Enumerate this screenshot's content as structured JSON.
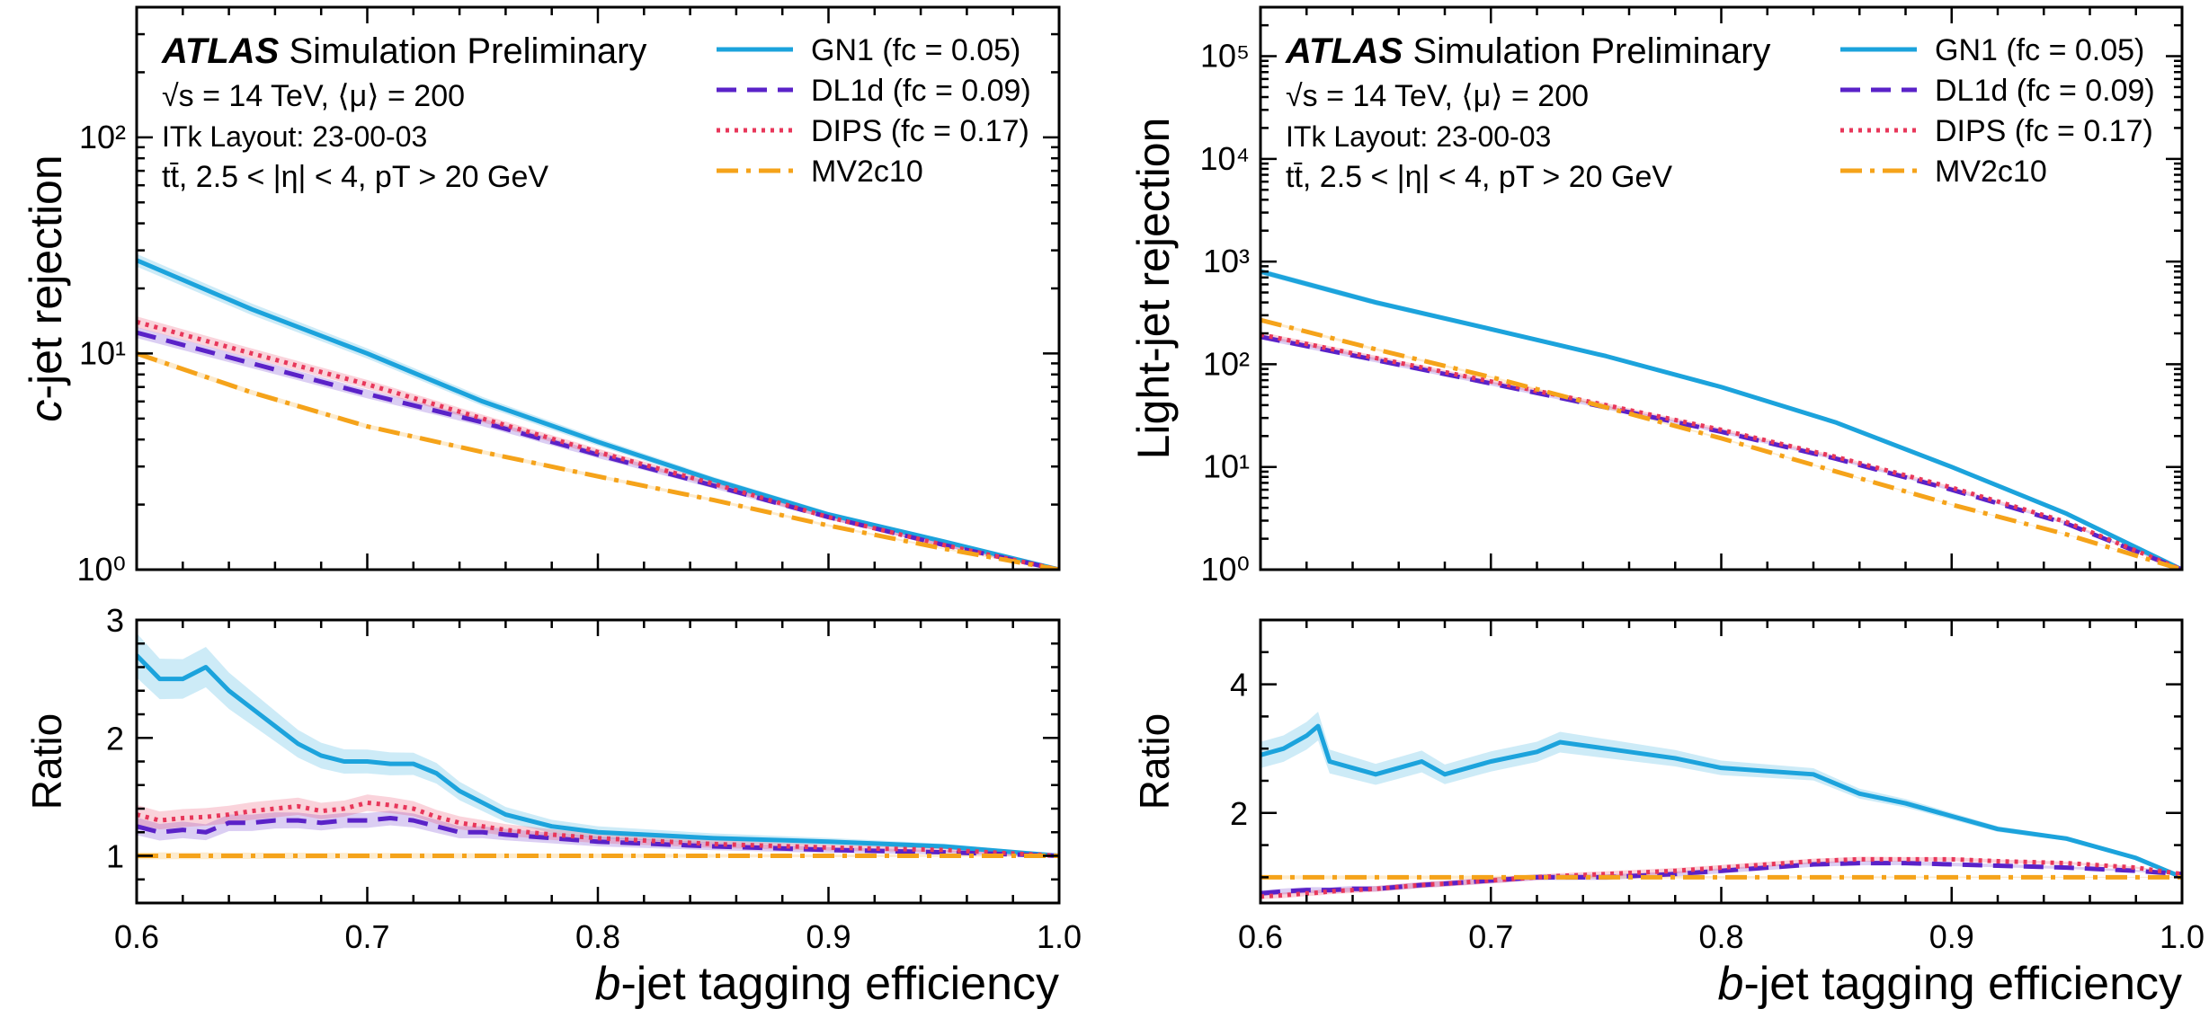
{
  "colors": {
    "gn1": "#1ca3dc",
    "dl1d": "#5a22c8",
    "dips": "#e8375a",
    "mv2c10": "#f5a31a"
  },
  "chart_data": [
    {
      "type": "line",
      "panel": "left-top",
      "ylabel_italic": "c",
      "ylabel_rest": "-jet rejection",
      "yscale": "log",
      "xlim": [
        0.6,
        1.0
      ],
      "ylim": [
        1,
        400
      ],
      "ytick_labels": [
        "10⁰",
        "10¹",
        "10²"
      ],
      "annotations": {
        "atlas": "ATLAS",
        "atlas_tail": " Simulation Preliminary",
        "line2": "√s = 14 TeV, ⟨μ⟩ = 200",
        "line3": "ITk Layout: 23-00-03",
        "line4": "tt̄, 2.5 < |η| < 4, pT > 20 GeV"
      },
      "legend": [
        "GN1 (fc = 0.05)",
        "DL1d (fc = 0.09)",
        "DIPS (fc = 0.17)",
        "MV2c10"
      ],
      "x": [
        0.6,
        0.65,
        0.7,
        0.75,
        0.8,
        0.85,
        0.9,
        0.95,
        1.0
      ],
      "series": [
        {
          "name": "GN1",
          "values": [
            27,
            16,
            10,
            6.0,
            3.9,
            2.6,
            1.8,
            1.35,
            1.0
          ]
        },
        {
          "name": "DL1d",
          "values": [
            12.5,
            9.0,
            6.5,
            4.8,
            3.4,
            2.45,
            1.75,
            1.3,
            1.0
          ]
        },
        {
          "name": "DIPS",
          "values": [
            14,
            10,
            7.2,
            5.0,
            3.5,
            2.5,
            1.75,
            1.3,
            1.0
          ]
        },
        {
          "name": "MV2c10",
          "values": [
            10,
            6.6,
            4.6,
            3.5,
            2.7,
            2.1,
            1.6,
            1.25,
            1.0
          ]
        }
      ]
    },
    {
      "type": "line",
      "panel": "left-bottom",
      "ylabel": "Ratio",
      "xlabel_italic": "b",
      "xlabel_rest": "-jet tagging efficiency",
      "xlim": [
        0.6,
        1.0
      ],
      "ylim": [
        0.6,
        3.0
      ],
      "yticks": [
        1,
        2,
        3
      ],
      "xticks": [
        "0.6",
        "0.7",
        "0.8",
        "0.9",
        "1.0"
      ],
      "x": [
        0.6,
        0.61,
        0.62,
        0.63,
        0.64,
        0.65,
        0.66,
        0.67,
        0.68,
        0.69,
        0.7,
        0.71,
        0.72,
        0.73,
        0.74,
        0.75,
        0.76,
        0.78,
        0.8,
        0.85,
        0.9,
        0.95,
        1.0
      ],
      "series": [
        {
          "name": "GN1",
          "values": [
            2.7,
            2.5,
            2.5,
            2.6,
            2.4,
            2.25,
            2.1,
            1.95,
            1.85,
            1.8,
            1.8,
            1.78,
            1.78,
            1.7,
            1.55,
            1.45,
            1.35,
            1.25,
            1.2,
            1.15,
            1.12,
            1.08,
            1.0
          ]
        },
        {
          "name": "DL1d",
          "values": [
            1.25,
            1.2,
            1.22,
            1.2,
            1.28,
            1.28,
            1.3,
            1.3,
            1.28,
            1.3,
            1.3,
            1.32,
            1.3,
            1.25,
            1.2,
            1.2,
            1.18,
            1.15,
            1.12,
            1.08,
            1.05,
            1.03,
            1.0
          ]
        },
        {
          "name": "DIPS",
          "values": [
            1.35,
            1.3,
            1.32,
            1.33,
            1.35,
            1.38,
            1.4,
            1.42,
            1.38,
            1.4,
            1.45,
            1.43,
            1.4,
            1.33,
            1.28,
            1.25,
            1.22,
            1.18,
            1.15,
            1.1,
            1.07,
            1.05,
            1.0
          ]
        },
        {
          "name": "MV2c10",
          "values": [
            1.0,
            1.0,
            1.0,
            1.0,
            1.0,
            1.0,
            1.0,
            1.0,
            1.0,
            1.0,
            1.0,
            1.0,
            1.0,
            1.0,
            1.0,
            1.0,
            1.0,
            1.0,
            1.0,
            1.0,
            1.0,
            1.0,
            1.0
          ]
        }
      ]
    },
    {
      "type": "line",
      "panel": "right-top",
      "ylabel": "Light-jet rejection",
      "yscale": "log",
      "xlim": [
        0.6,
        1.0
      ],
      "ylim": [
        1,
        300000
      ],
      "ytick_labels": [
        "10⁰",
        "10¹",
        "10²",
        "10³",
        "10⁴",
        "10⁵"
      ],
      "annotations": {
        "atlas": "ATLAS",
        "atlas_tail": " Simulation Preliminary",
        "line2": "√s = 14 TeV, ⟨μ⟩ = 200",
        "line3": "ITk Layout: 23-00-03",
        "line4": "tt̄, 2.5 < |η| < 4, pT > 20 GeV"
      },
      "legend": [
        "GN1 (fc = 0.05)",
        "DL1d (fc = 0.09)",
        "DIPS (fc = 0.17)",
        "MV2c10"
      ],
      "x": [
        0.6,
        0.65,
        0.7,
        0.75,
        0.8,
        0.85,
        0.9,
        0.95,
        1.0
      ],
      "series": [
        {
          "name": "GN1",
          "values": [
            800,
            400,
            220,
            120,
            60,
            27,
            10,
            3.5,
            1.0
          ]
        },
        {
          "name": "DL1d",
          "values": [
            185,
            110,
            65,
            38,
            22,
            12,
            6.0,
            2.8,
            1.0
          ]
        },
        {
          "name": "DIPS",
          "values": [
            195,
            115,
            68,
            40,
            23,
            12.5,
            6.3,
            2.9,
            1.0
          ]
        },
        {
          "name": "MV2c10",
          "values": [
            270,
            140,
            75,
            38,
            19,
            9.0,
            4.3,
            2.2,
            1.0
          ]
        }
      ]
    },
    {
      "type": "line",
      "panel": "right-bottom",
      "ylabel": "Ratio",
      "xlabel_italic": "b",
      "xlabel_rest": "-jet tagging efficiency",
      "xlim": [
        0.6,
        1.0
      ],
      "ylim": [
        0.6,
        5.0
      ],
      "yticks": [
        2,
        4
      ],
      "xticks": [
        "0.6",
        "0.7",
        "0.8",
        "0.9",
        "1.0"
      ],
      "x": [
        0.6,
        0.61,
        0.62,
        0.625,
        0.63,
        0.64,
        0.65,
        0.66,
        0.67,
        0.68,
        0.7,
        0.72,
        0.73,
        0.75,
        0.78,
        0.8,
        0.82,
        0.84,
        0.86,
        0.88,
        0.9,
        0.92,
        0.95,
        0.98,
        1.0
      ],
      "series": [
        {
          "name": "GN1",
          "values": [
            2.9,
            3.0,
            3.2,
            3.35,
            2.8,
            2.7,
            2.6,
            2.7,
            2.8,
            2.6,
            2.8,
            2.95,
            3.1,
            3.0,
            2.85,
            2.7,
            2.65,
            2.6,
            2.3,
            2.15,
            1.95,
            1.75,
            1.6,
            1.3,
            1.0
          ]
        },
        {
          "name": "DL1d",
          "values": [
            0.75,
            0.78,
            0.8,
            0.8,
            0.8,
            0.82,
            0.82,
            0.85,
            0.88,
            0.9,
            0.95,
            1.0,
            1.0,
            1.0,
            1.05,
            1.1,
            1.15,
            1.2,
            1.22,
            1.22,
            1.2,
            1.18,
            1.15,
            1.1,
            1.05
          ]
        },
        {
          "name": "DIPS",
          "values": [
            0.7,
            0.72,
            0.75,
            0.76,
            0.78,
            0.8,
            0.82,
            0.85,
            0.88,
            0.9,
            0.95,
            1.0,
            1.02,
            1.05,
            1.1,
            1.15,
            1.2,
            1.25,
            1.28,
            1.28,
            1.28,
            1.25,
            1.22,
            1.15,
            1.05
          ]
        },
        {
          "name": "MV2c10",
          "values": [
            1.0,
            1.0,
            1.0,
            1.0,
            1.0,
            1.0,
            1.0,
            1.0,
            1.0,
            1.0,
            1.0,
            1.0,
            1.0,
            1.0,
            1.0,
            1.0,
            1.0,
            1.0,
            1.0,
            1.0,
            1.0,
            1.0,
            1.0,
            1.0,
            1.0
          ]
        }
      ]
    }
  ]
}
